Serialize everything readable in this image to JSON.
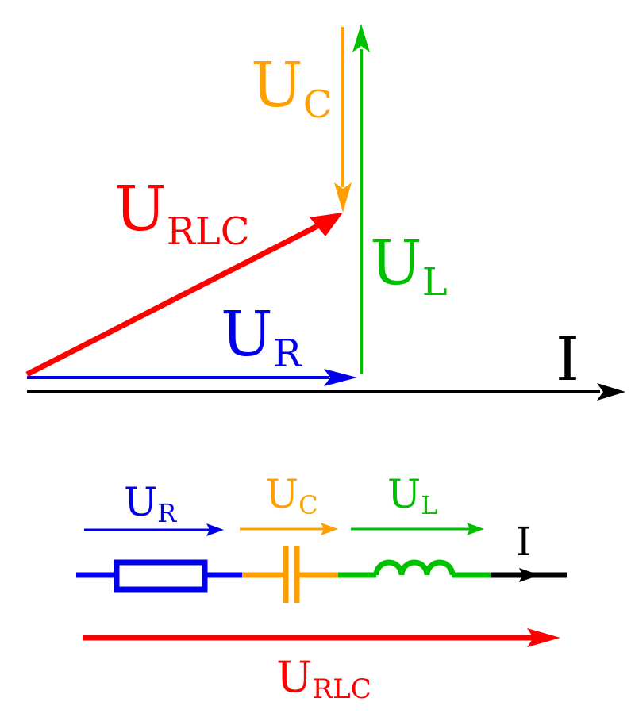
{
  "colors": {
    "resistor": "#0000ee",
    "capacitor": "#ffa000",
    "inductor": "#00c000",
    "total": "#ff0000",
    "current": "#000000"
  },
  "phasor_diagram": {
    "current_label": "I",
    "ur": {
      "main": "U",
      "sub": "R"
    },
    "uc": {
      "main": "U",
      "sub": "C"
    },
    "ul": {
      "main": "U",
      "sub": "L"
    },
    "urlc": {
      "main": "U",
      "sub": "RLC"
    }
  },
  "circuit": {
    "current_label": "I",
    "ur": {
      "main": "U",
      "sub": "R"
    },
    "uc": {
      "main": "U",
      "sub": "C"
    },
    "ul": {
      "main": "U",
      "sub": "L"
    },
    "urlc": {
      "main": "U",
      "sub": "RLC"
    }
  }
}
